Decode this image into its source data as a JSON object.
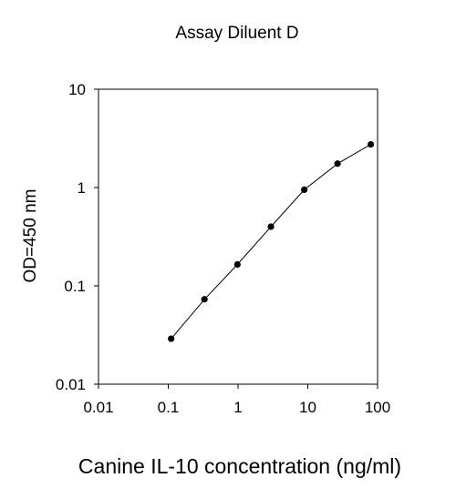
{
  "chart_data": {
    "type": "line",
    "title": "Assay Diluent D",
    "xlabel": "Canine IL-10 concentration (ng/ml)",
    "ylabel": "OD=450 nm",
    "x_scale": "log",
    "y_scale": "log",
    "xlim": [
      0.01,
      100
    ],
    "ylim": [
      0.01,
      10
    ],
    "x_ticks": [
      {
        "value": 0.01,
        "label": "0.01"
      },
      {
        "value": 0.1,
        "label": "0.1"
      },
      {
        "value": 1,
        "label": "1"
      },
      {
        "value": 10,
        "label": "10"
      },
      {
        "value": 100,
        "label": "100"
      }
    ],
    "y_ticks": [
      {
        "value": 0.01,
        "label": "0.01"
      },
      {
        "value": 0.1,
        "label": "0.1"
      },
      {
        "value": 1,
        "label": "1"
      },
      {
        "value": 10,
        "label": "10"
      }
    ],
    "grid": false,
    "legend": "none",
    "series": [
      {
        "x": [
          0.11,
          0.33,
          0.98,
          2.96,
          8.89,
          26.67,
          80
        ],
        "y": [
          0.029,
          0.073,
          0.165,
          0.4,
          0.95,
          1.75,
          2.75
        ],
        "color": "#000000",
        "marker": "circle"
      }
    ]
  }
}
